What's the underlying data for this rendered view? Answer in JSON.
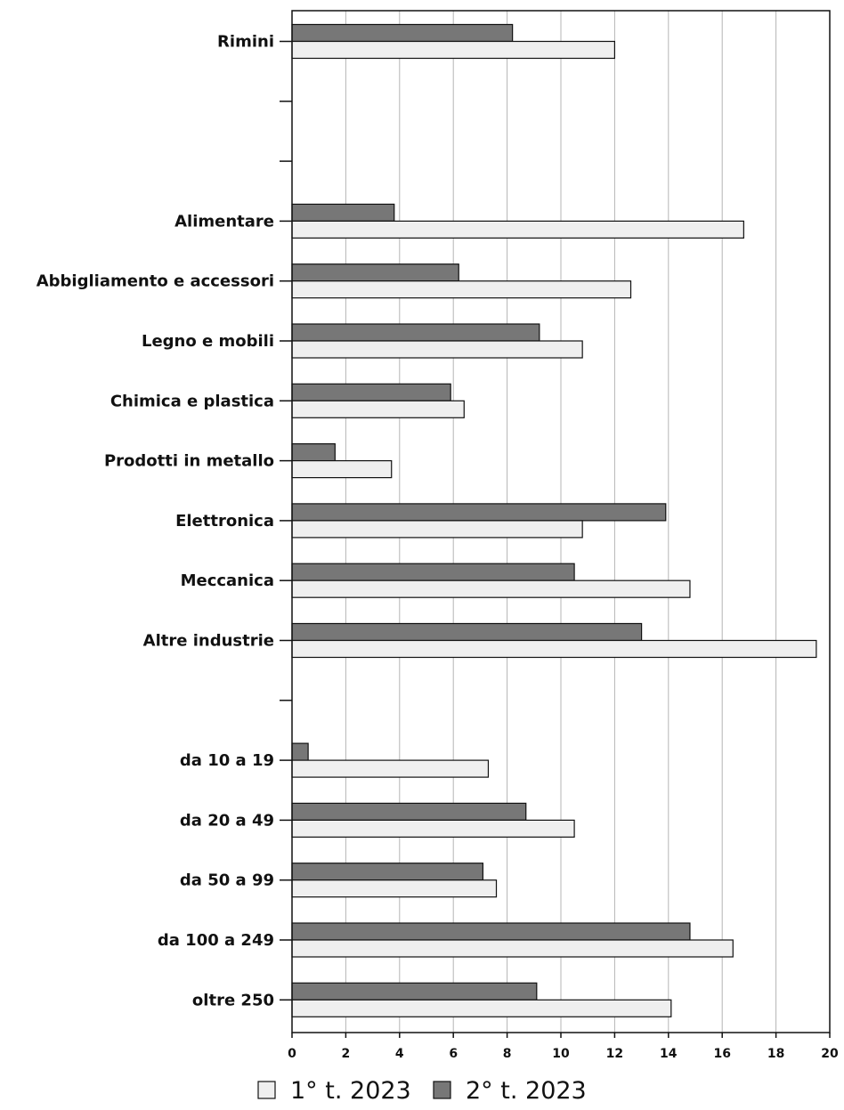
{
  "chart_data": {
    "type": "bar",
    "orientation": "horizontal",
    "categories": [
      "Rimini",
      "",
      "",
      "Alimentare",
      "Abbigliamento e accessori",
      "Legno e mobili",
      "Chimica e plastica",
      "Prodotti in metallo",
      "Elettronica",
      "Meccanica",
      "Altre industrie",
      "",
      "da 10 a 19",
      "da 20 a 49",
      "da 50 a 99",
      "da 100 a 249",
      "oltre 250"
    ],
    "series": [
      {
        "name": "2° t. 2023",
        "color": "#777777",
        "values": [
          8.2,
          null,
          null,
          3.8,
          6.2,
          9.2,
          5.9,
          1.6,
          13.9,
          10.5,
          13.0,
          null,
          0.6,
          8.7,
          7.1,
          14.8,
          9.1
        ]
      },
      {
        "name": "1° t. 2023",
        "color": "#efefef",
        "values": [
          12.0,
          null,
          null,
          16.8,
          12.6,
          10.8,
          6.4,
          3.7,
          10.8,
          14.8,
          19.5,
          null,
          7.3,
          10.5,
          7.6,
          16.4,
          14.1
        ]
      }
    ],
    "xlim": [
      0,
      20
    ],
    "xticks": [
      "0",
      "2",
      "4",
      "6",
      "8",
      "10",
      "12",
      "14",
      "16",
      "18",
      "20"
    ],
    "grid": "vertical",
    "legend": {
      "position": "bottom",
      "entries": [
        {
          "label": "1° t. 2023",
          "color": "#efefef"
        },
        {
          "label": "2° t. 2023",
          "color": "#777777"
        }
      ]
    },
    "title": "",
    "xlabel": "",
    "ylabel": ""
  }
}
